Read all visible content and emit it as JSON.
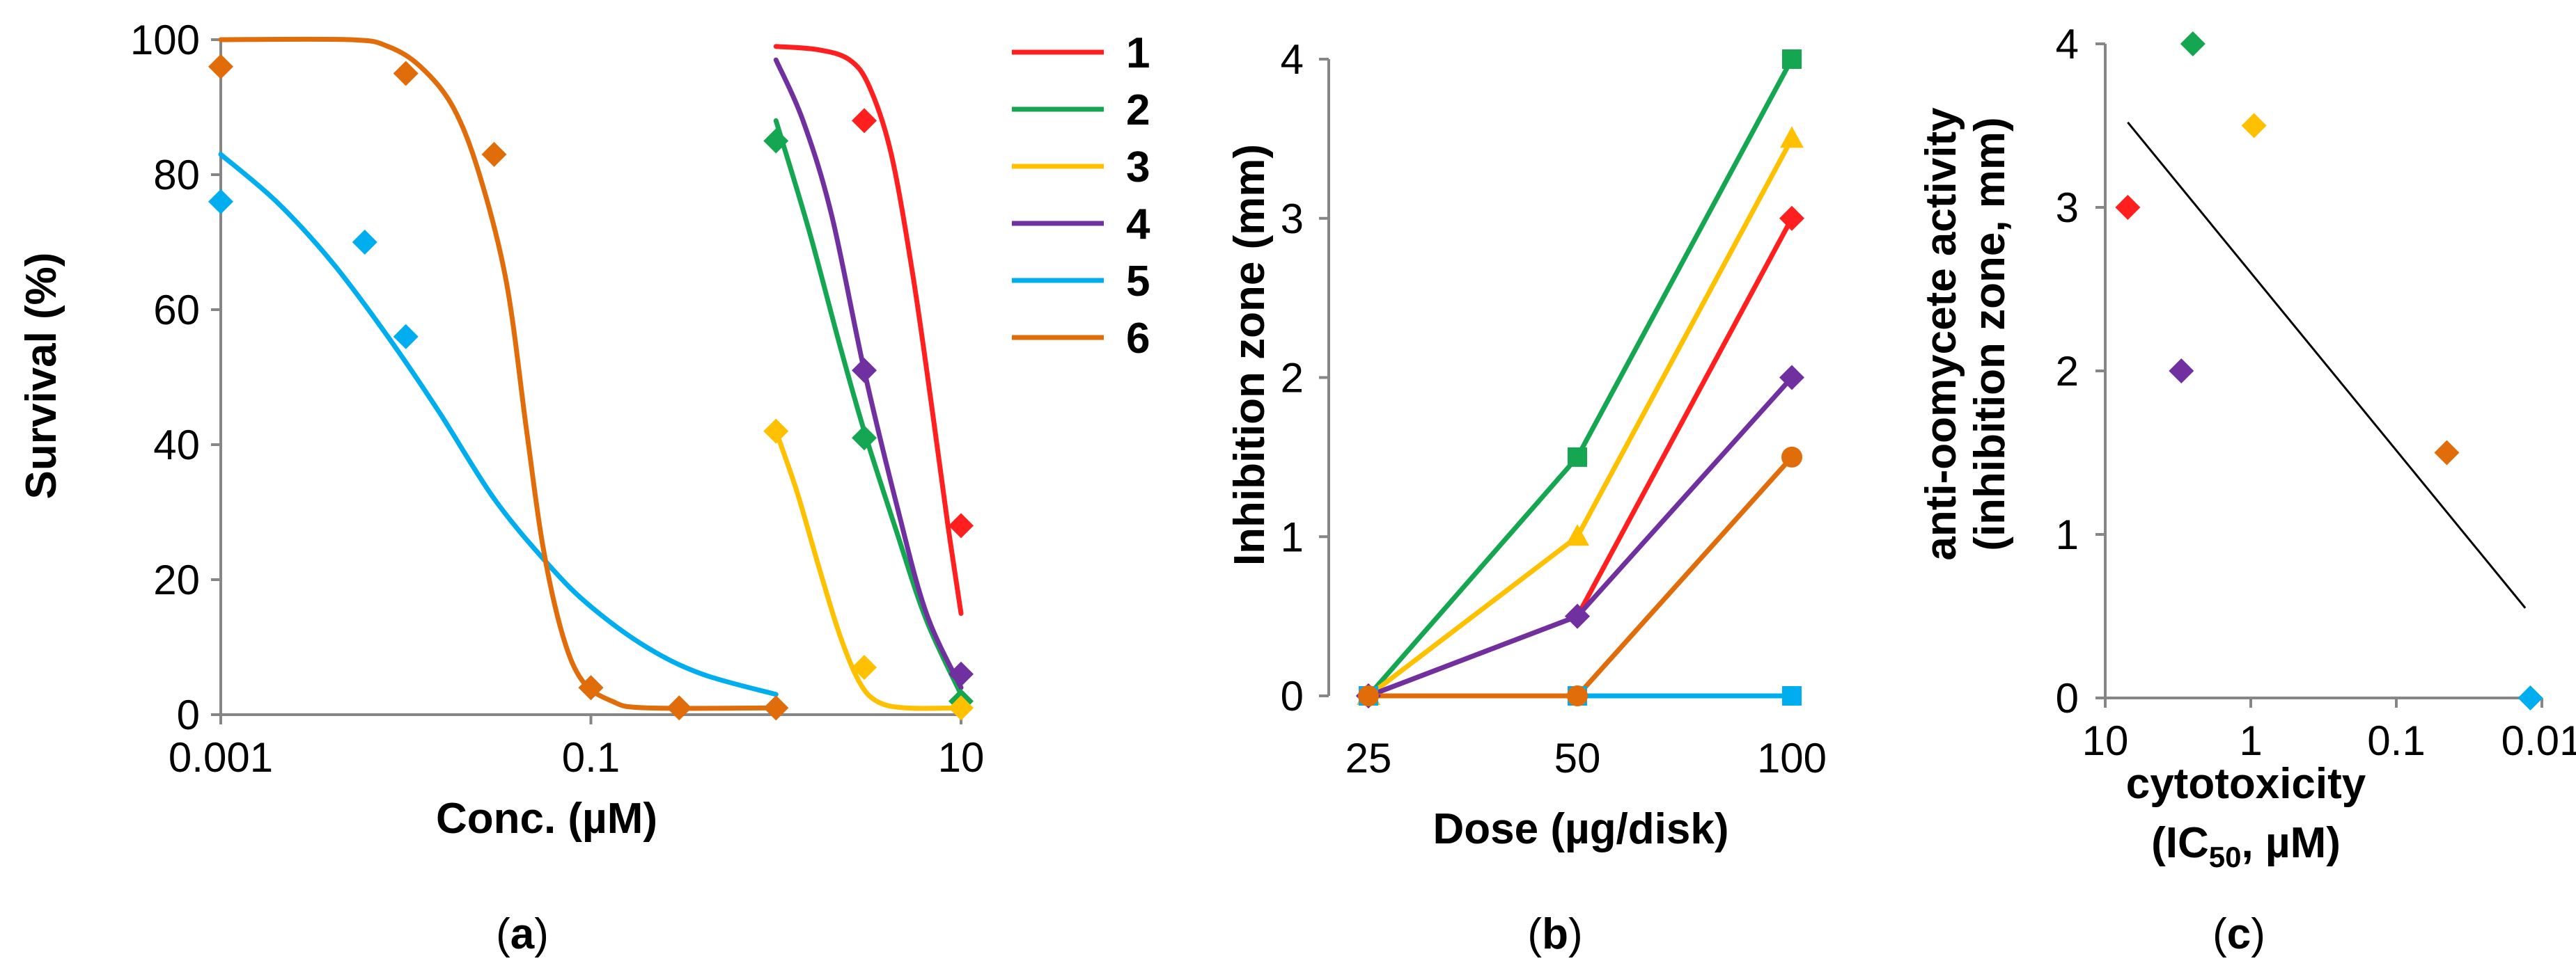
{
  "series_colors": {
    "1": "#ff1f1f",
    "2": "#14a651",
    "3": "#ffc000",
    "4": "#7030a0",
    "5": "#00aeef",
    "6": "#e06c0a"
  },
  "chart_data": [
    {
      "panel": "a",
      "caption": "a",
      "type": "scatter",
      "xscale": "log",
      "xlim": [
        0.001,
        10
      ],
      "ylim": [
        0,
        100
      ],
      "xlabel": "Conc. (µM)",
      "ylabel": "Survival (%)",
      "xticks": [
        0.001,
        0.1,
        10
      ],
      "xtick_labels": [
        "0.001",
        "0.1",
        "10"
      ],
      "yticks": [
        0,
        20,
        40,
        60,
        80,
        100
      ],
      "ytick_labels": [
        "0",
        "20",
        "40",
        "60",
        "80",
        "100"
      ],
      "legend": {
        "position": "top-right",
        "entries": [
          "1",
          "2",
          "3",
          "4",
          "5",
          "6"
        ]
      },
      "series": [
        {
          "name": "1",
          "points": [
            [
              3,
              88
            ],
            [
              10,
              28
            ]
          ],
          "fit": [
            [
              1,
              99
            ],
            [
              1.7,
              98.5
            ],
            [
              2.5,
              97
            ],
            [
              3.2,
              93
            ],
            [
              4.2,
              83
            ],
            [
              5.5,
              65
            ],
            [
              7,
              45
            ],
            [
              8.5,
              28
            ],
            [
              10,
              15
            ]
          ]
        },
        {
          "name": "2",
          "points": [
            [
              1,
              85
            ],
            [
              3,
              41
            ],
            [
              10,
              2
            ]
          ],
          "fit": [
            [
              1,
              88
            ],
            [
              1.5,
              72
            ],
            [
              2.2,
              55
            ],
            [
              3,
              42
            ],
            [
              4.5,
              27
            ],
            [
              6.5,
              14
            ],
            [
              10,
              3
            ]
          ]
        },
        {
          "name": "3",
          "points": [
            [
              1,
              42
            ],
            [
              3,
              7
            ],
            [
              10,
              1
            ]
          ],
          "fit": [
            [
              1,
              42
            ],
            [
              1.3,
              33
            ],
            [
              1.7,
              22
            ],
            [
              2.2,
              12
            ],
            [
              2.8,
              5
            ],
            [
              3.5,
              2
            ],
            [
              5,
              1
            ],
            [
              10,
              1
            ]
          ]
        },
        {
          "name": "4",
          "points": [
            [
              3,
              51
            ],
            [
              10,
              6
            ]
          ],
          "fit": [
            [
              1,
              97
            ],
            [
              1.4,
              88
            ],
            [
              2,
              74
            ],
            [
              3,
              51
            ],
            [
              4.5,
              31
            ],
            [
              6.5,
              15
            ],
            [
              10,
              4
            ]
          ]
        },
        {
          "name": "5",
          "points": [
            [
              0.001,
              76
            ],
            [
              0.006,
              70
            ],
            [
              0.01,
              56
            ],
            [
              0.1,
              4
            ],
            [
              1,
              1
            ]
          ],
          "fit": [
            [
              0.001,
              83
            ],
            [
              0.002,
              76
            ],
            [
              0.004,
              67
            ],
            [
              0.008,
              56
            ],
            [
              0.015,
              45
            ],
            [
              0.03,
              32
            ],
            [
              0.06,
              22
            ],
            [
              0.1,
              16
            ],
            [
              0.2,
              10
            ],
            [
              0.4,
              6
            ],
            [
              1,
              3
            ]
          ]
        },
        {
          "name": "6",
          "points": [
            [
              0.001,
              96
            ],
            [
              0.01,
              95
            ],
            [
              0.03,
              83
            ],
            [
              0.1,
              4
            ],
            [
              0.3,
              1
            ],
            [
              1,
              1
            ]
          ],
          "fit": [
            [
              0.001,
              100
            ],
            [
              0.005,
              100
            ],
            [
              0.008,
              99
            ],
            [
              0.012,
              96
            ],
            [
              0.018,
              90
            ],
            [
              0.025,
              80
            ],
            [
              0.035,
              64
            ],
            [
              0.045,
              42
            ],
            [
              0.055,
              25
            ],
            [
              0.07,
              12
            ],
            [
              0.09,
              5
            ],
            [
              0.13,
              2
            ],
            [
              0.2,
              1
            ],
            [
              1,
              1
            ]
          ]
        }
      ]
    },
    {
      "panel": "b",
      "caption": "b",
      "type": "line",
      "categories": [
        "25",
        "50",
        "100"
      ],
      "ylim": [
        0,
        4
      ],
      "xlabel": "Dose (µg/disk)",
      "ylabel": "Inhibition  zone (mm)",
      "yticks": [
        0,
        1,
        2,
        3,
        4
      ],
      "ytick_labels": [
        "0",
        "1",
        "2",
        "3",
        "4"
      ],
      "series": [
        {
          "name": "1",
          "marker": "diamond",
          "values": [
            0,
            0.5,
            3
          ]
        },
        {
          "name": "2",
          "marker": "square",
          "values": [
            0,
            1.5,
            4
          ]
        },
        {
          "name": "3",
          "marker": "triangle",
          "values": [
            0,
            1,
            3.5
          ]
        },
        {
          "name": "4",
          "marker": "diamond",
          "values": [
            0,
            0.5,
            2
          ]
        },
        {
          "name": "5",
          "marker": "square",
          "values": [
            0,
            0,
            0
          ]
        },
        {
          "name": "6",
          "marker": "circle",
          "values": [
            0,
            0,
            1.5
          ]
        }
      ]
    },
    {
      "panel": "c",
      "caption": "c",
      "type": "scatter",
      "xscale": "log",
      "xreversed": true,
      "xlim": [
        10,
        0.01
      ],
      "ylim": [
        0,
        4
      ],
      "xlabel_line1": "cytotoxicity",
      "xlabel_line2_pre": "(IC",
      "xlabel_line2_sub": "50",
      "xlabel_line2_post": ", µM)",
      "ylabel_line1": "anti-oomycete activity",
      "ylabel_line2": "(inhibition zone, mm)",
      "xticks": [
        10,
        1,
        0.1,
        0.01
      ],
      "xtick_labels": [
        "10",
        "1",
        "0.1",
        "0.01"
      ],
      "yticks": [
        0,
        1,
        2,
        3,
        4
      ],
      "ytick_labels": [
        "0",
        "1",
        "2",
        "3",
        "4"
      ],
      "points": [
        {
          "name": "1",
          "x": 7,
          "y": 3
        },
        {
          "name": "2",
          "x": 2.5,
          "y": 4
        },
        {
          "name": "3",
          "x": 0.95,
          "y": 3.5
        },
        {
          "name": "4",
          "x": 3,
          "y": 2
        },
        {
          "name": "5",
          "x": 0.012,
          "y": 0
        },
        {
          "name": "6",
          "x": 0.045,
          "y": 1.5
        }
      ],
      "trendline": [
        [
          7,
          3.52
        ],
        [
          0.013,
          0.55
        ]
      ]
    }
  ]
}
